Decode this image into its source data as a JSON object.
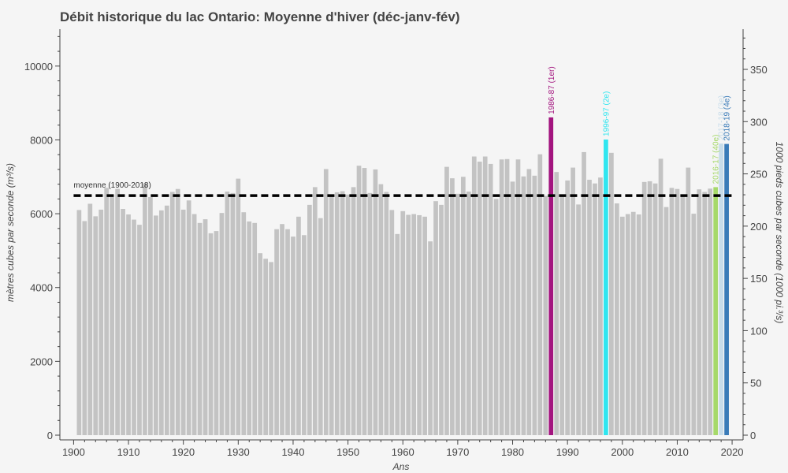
{
  "chart_data": {
    "type": "bar",
    "title": "Débit historique du lac Ontario: Moyenne d'hiver (déc-janv-fév)",
    "xlabel": "Ans",
    "ylabel": "mètres cubes par seconde (m³/s)",
    "y2label": "1000 pieds cubes par seconde (1000 pi.³/s)",
    "xlim": [
      1897.5,
      2022
    ],
    "ylim": [
      0,
      11000
    ],
    "y2lim": [
      0,
      388.46
    ],
    "xticks": [
      1900,
      1910,
      1920,
      1930,
      1940,
      1950,
      1960,
      1970,
      1980,
      1990,
      2000,
      2010,
      2020
    ],
    "yticks": [
      0,
      2000,
      4000,
      6000,
      8000,
      10000
    ],
    "y2ticks": [
      0,
      50,
      100,
      150,
      200,
      250,
      300,
      350
    ],
    "start_year": 1901,
    "values": [
      6100,
      5800,
      6270,
      5930,
      6110,
      6700,
      6450,
      6670,
      6130,
      5980,
      5840,
      5700,
      6820,
      6450,
      5950,
      6090,
      6220,
      6590,
      6670,
      6110,
      6360,
      5990,
      5750,
      5850,
      5470,
      5530,
      6020,
      6600,
      6560,
      6950,
      6040,
      5790,
      5750,
      4930,
      4780,
      4690,
      5580,
      5720,
      5580,
      5380,
      5920,
      5420,
      6240,
      6720,
      5880,
      7210,
      6500,
      6580,
      6610,
      6520,
      6720,
      7300,
      7240,
      6560,
      7200,
      6800,
      6590,
      6100,
      5450,
      6070,
      5970,
      5990,
      5960,
      5920,
      5250,
      6340,
      6240,
      7270,
      6960,
      6540,
      7000,
      6600,
      7550,
      7410,
      7550,
      7350,
      6400,
      7470,
      7480,
      6870,
      7470,
      7010,
      7210,
      7030,
      7610,
      6480,
      8610,
      7130,
      6470,
      6900,
      7250,
      6250,
      7670,
      6920,
      6820,
      6980,
      8010,
      7650,
      6280,
      5920,
      5990,
      6050,
      5980,
      6860,
      6880,
      6820,
      7490,
      6180,
      6700,
      6670,
      6500,
      7250,
      6000,
      6660,
      6590,
      6680,
      6720,
      7900,
      7890
    ],
    "highlights": [
      {
        "year": 1987,
        "label": "1986-87 (1er)",
        "color": "#a3157f"
      },
      {
        "year": 1997,
        "label": "1996-97 (2e)",
        "color": "#2fe6f0"
      },
      {
        "year": 2017,
        "label": "2016-17 (40e)",
        "color": "#a6d96a"
      },
      {
        "year": 2018,
        "label": "2017-18 (3e)",
        "color": "#c7dcea"
      },
      {
        "year": 2019,
        "label": "2018-19 (4e)",
        "color": "#3a7bb8"
      }
    ],
    "mean": {
      "value": 6490,
      "label": "moyenne (1900-2018)"
    },
    "bar_color": "#c3c3c3",
    "grid": false,
    "legend": "none"
  }
}
